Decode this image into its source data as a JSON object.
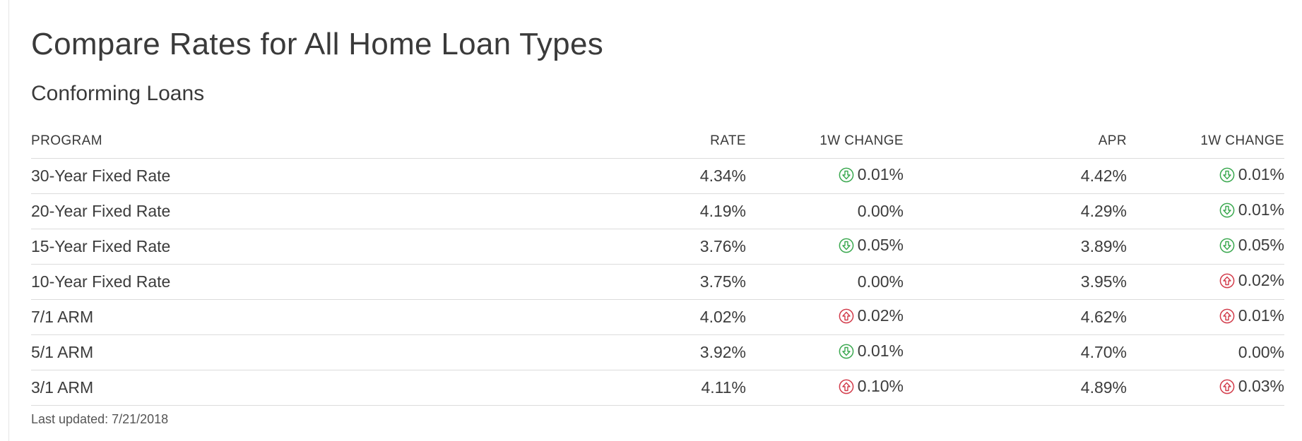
{
  "page": {
    "title": "Compare Rates for All Home Loan Types",
    "section_title": "Conforming Loans",
    "last_updated": "Last updated: 7/21/2018"
  },
  "colors": {
    "down": "#3aa84f",
    "up": "#d23b4a"
  },
  "table": {
    "headers": [
      "PROGRAM",
      "RATE",
      "1W CHANGE",
      "APR",
      "1W CHANGE"
    ],
    "rows": [
      {
        "program": "30-Year Fixed Rate",
        "rate": "4.34%",
        "rate_change": "0.01%",
        "rate_dir": "down",
        "apr": "4.42%",
        "apr_change": "0.01%",
        "apr_dir": "down"
      },
      {
        "program": "20-Year Fixed Rate",
        "rate": "4.19%",
        "rate_change": "0.00%",
        "rate_dir": "none",
        "apr": "4.29%",
        "apr_change": "0.01%",
        "apr_dir": "down"
      },
      {
        "program": "15-Year Fixed Rate",
        "rate": "3.76%",
        "rate_change": "0.05%",
        "rate_dir": "down",
        "apr": "3.89%",
        "apr_change": "0.05%",
        "apr_dir": "down"
      },
      {
        "program": "10-Year Fixed Rate",
        "rate": "3.75%",
        "rate_change": "0.00%",
        "rate_dir": "none",
        "apr": "3.95%",
        "apr_change": "0.02%",
        "apr_dir": "up"
      },
      {
        "program": "7/1 ARM",
        "rate": "4.02%",
        "rate_change": "0.02%",
        "rate_dir": "up",
        "apr": "4.62%",
        "apr_change": "0.01%",
        "apr_dir": "up"
      },
      {
        "program": "5/1 ARM",
        "rate": "3.92%",
        "rate_change": "0.01%",
        "rate_dir": "down",
        "apr": "4.70%",
        "apr_change": "0.00%",
        "apr_dir": "none"
      },
      {
        "program": "3/1 ARM",
        "rate": "4.11%",
        "rate_change": "0.10%",
        "rate_dir": "up",
        "apr": "4.89%",
        "apr_change": "0.03%",
        "apr_dir": "up"
      }
    ]
  }
}
